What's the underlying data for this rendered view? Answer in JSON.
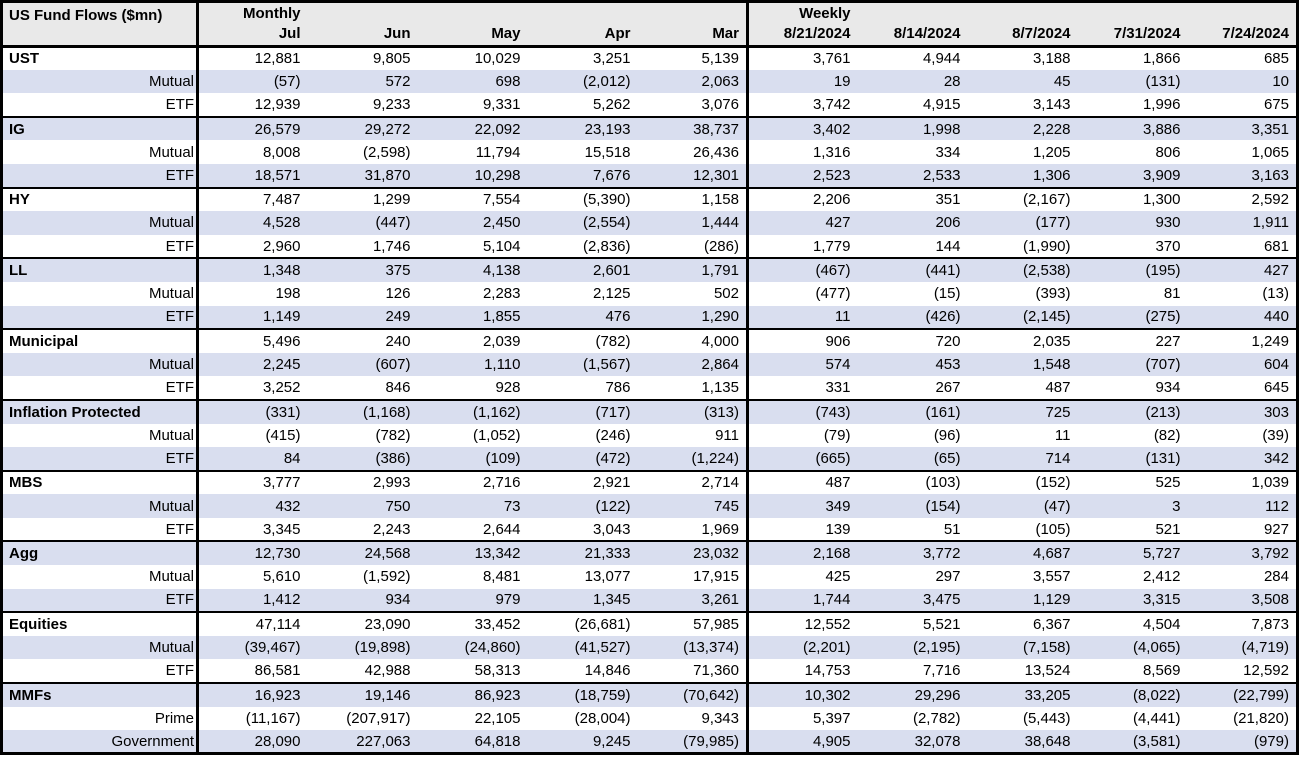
{
  "colors": {
    "header_bg": "#e9e9e9",
    "row_alt_bg": "#d9deef",
    "border": "#000000",
    "text": "#000000"
  },
  "chart_data": {
    "type": "table",
    "title": "US Fund Flows ($mn)",
    "column_groups": [
      {
        "label": "Monthly",
        "columns": [
          "Jul",
          "Jun",
          "May",
          "Apr",
          "Mar"
        ]
      },
      {
        "label": "Weekly",
        "columns": [
          "8/21/2024",
          "8/14/2024",
          "8/7/2024",
          "7/31/2024",
          "7/24/2024"
        ]
      }
    ],
    "rows": [
      {
        "label": "UST",
        "level": "group",
        "values": [
          "12,881",
          "9,805",
          "10,029",
          "3,251",
          "5,139",
          "3,761",
          "4,944",
          "3,188",
          "1,866",
          "685"
        ]
      },
      {
        "label": "Mutual",
        "level": "sub",
        "values": [
          "(57)",
          "572",
          "698",
          "(2,012)",
          "2,063",
          "19",
          "28",
          "45",
          "(131)",
          "10"
        ]
      },
      {
        "label": "ETF",
        "level": "sub",
        "values": [
          "12,939",
          "9,233",
          "9,331",
          "5,262",
          "3,076",
          "3,742",
          "4,915",
          "3,143",
          "1,996",
          "675"
        ]
      },
      {
        "label": "IG",
        "level": "group",
        "values": [
          "26,579",
          "29,272",
          "22,092",
          "23,193",
          "38,737",
          "3,402",
          "1,998",
          "2,228",
          "3,886",
          "3,351"
        ]
      },
      {
        "label": "Mutual",
        "level": "sub",
        "values": [
          "8,008",
          "(2,598)",
          "11,794",
          "15,518",
          "26,436",
          "1,316",
          "334",
          "1,205",
          "806",
          "1,065"
        ]
      },
      {
        "label": "ETF",
        "level": "sub",
        "values": [
          "18,571",
          "31,870",
          "10,298",
          "7,676",
          "12,301",
          "2,523",
          "2,533",
          "1,306",
          "3,909",
          "3,163"
        ]
      },
      {
        "label": "HY",
        "level": "group",
        "values": [
          "7,487",
          "1,299",
          "7,554",
          "(5,390)",
          "1,158",
          "2,206",
          "351",
          "(2,167)",
          "1,300",
          "2,592"
        ]
      },
      {
        "label": "Mutual",
        "level": "sub",
        "values": [
          "4,528",
          "(447)",
          "2,450",
          "(2,554)",
          "1,444",
          "427",
          "206",
          "(177)",
          "930",
          "1,911"
        ]
      },
      {
        "label": "ETF",
        "level": "sub",
        "values": [
          "2,960",
          "1,746",
          "5,104",
          "(2,836)",
          "(286)",
          "1,779",
          "144",
          "(1,990)",
          "370",
          "681"
        ]
      },
      {
        "label": "LL",
        "level": "group",
        "values": [
          "1,348",
          "375",
          "4,138",
          "2,601",
          "1,791",
          "(467)",
          "(441)",
          "(2,538)",
          "(195)",
          "427"
        ]
      },
      {
        "label": "Mutual",
        "level": "sub",
        "values": [
          "198",
          "126",
          "2,283",
          "2,125",
          "502",
          "(477)",
          "(15)",
          "(393)",
          "81",
          "(13)"
        ]
      },
      {
        "label": "ETF",
        "level": "sub",
        "values": [
          "1,149",
          "249",
          "1,855",
          "476",
          "1,290",
          "11",
          "(426)",
          "(2,145)",
          "(275)",
          "440"
        ]
      },
      {
        "label": "Municipal",
        "level": "group",
        "values": [
          "5,496",
          "240",
          "2,039",
          "(782)",
          "4,000",
          "906",
          "720",
          "2,035",
          "227",
          "1,249"
        ]
      },
      {
        "label": "Mutual",
        "level": "sub",
        "values": [
          "2,245",
          "(607)",
          "1,110",
          "(1,567)",
          "2,864",
          "574",
          "453",
          "1,548",
          "(707)",
          "604"
        ]
      },
      {
        "label": "ETF",
        "level": "sub",
        "values": [
          "3,252",
          "846",
          "928",
          "786",
          "1,135",
          "331",
          "267",
          "487",
          "934",
          "645"
        ]
      },
      {
        "label": "Inflation Protected",
        "level": "group",
        "values": [
          "(331)",
          "(1,168)",
          "(1,162)",
          "(717)",
          "(313)",
          "(743)",
          "(161)",
          "725",
          "(213)",
          "303"
        ]
      },
      {
        "label": "Mutual",
        "level": "sub",
        "values": [
          "(415)",
          "(782)",
          "(1,052)",
          "(246)",
          "911",
          "(79)",
          "(96)",
          "11",
          "(82)",
          "(39)"
        ]
      },
      {
        "label": "ETF",
        "level": "sub",
        "values": [
          "84",
          "(386)",
          "(109)",
          "(472)",
          "(1,224)",
          "(665)",
          "(65)",
          "714",
          "(131)",
          "342"
        ]
      },
      {
        "label": "MBS",
        "level": "group",
        "values": [
          "3,777",
          "2,993",
          "2,716",
          "2,921",
          "2,714",
          "487",
          "(103)",
          "(152)",
          "525",
          "1,039"
        ]
      },
      {
        "label": "Mutual",
        "level": "sub",
        "values": [
          "432",
          "750",
          "73",
          "(122)",
          "745",
          "349",
          "(154)",
          "(47)",
          "3",
          "112"
        ]
      },
      {
        "label": "ETF",
        "level": "sub",
        "values": [
          "3,345",
          "2,243",
          "2,644",
          "3,043",
          "1,969",
          "139",
          "51",
          "(105)",
          "521",
          "927"
        ]
      },
      {
        "label": "Agg",
        "level": "group",
        "values": [
          "12,730",
          "24,568",
          "13,342",
          "21,333",
          "23,032",
          "2,168",
          "3,772",
          "4,687",
          "5,727",
          "3,792"
        ]
      },
      {
        "label": "Mutual",
        "level": "sub",
        "values": [
          "5,610",
          "(1,592)",
          "8,481",
          "13,077",
          "17,915",
          "425",
          "297",
          "3,557",
          "2,412",
          "284"
        ]
      },
      {
        "label": "ETF",
        "level": "sub",
        "values": [
          "1,412",
          "934",
          "979",
          "1,345",
          "3,261",
          "1,744",
          "3,475",
          "1,129",
          "3,315",
          "3,508"
        ]
      },
      {
        "label": "Equities",
        "level": "group",
        "values": [
          "47,114",
          "23,090",
          "33,452",
          "(26,681)",
          "57,985",
          "12,552",
          "5,521",
          "6,367",
          "4,504",
          "7,873"
        ]
      },
      {
        "label": "Mutual",
        "level": "sub",
        "values": [
          "(39,467)",
          "(19,898)",
          "(24,860)",
          "(41,527)",
          "(13,374)",
          "(2,201)",
          "(2,195)",
          "(7,158)",
          "(4,065)",
          "(4,719)"
        ]
      },
      {
        "label": "ETF",
        "level": "sub",
        "values": [
          "86,581",
          "42,988",
          "58,313",
          "14,846",
          "71,360",
          "14,753",
          "7,716",
          "13,524",
          "8,569",
          "12,592"
        ]
      },
      {
        "label": "MMFs",
        "level": "group",
        "values": [
          "16,923",
          "19,146",
          "86,923",
          "(18,759)",
          "(70,642)",
          "10,302",
          "29,296",
          "33,205",
          "(8,022)",
          "(22,799)"
        ]
      },
      {
        "label": "Prime",
        "level": "sub",
        "values": [
          "(11,167)",
          "(207,917)",
          "22,105",
          "(28,004)",
          "9,343",
          "5,397",
          "(2,782)",
          "(5,443)",
          "(4,441)",
          "(21,820)"
        ]
      },
      {
        "label": "Government",
        "level": "sub",
        "values": [
          "28,090",
          "227,063",
          "64,818",
          "9,245",
          "(79,985)",
          "4,905",
          "32,078",
          "38,648",
          "(3,581)",
          "(979)"
        ]
      }
    ]
  }
}
